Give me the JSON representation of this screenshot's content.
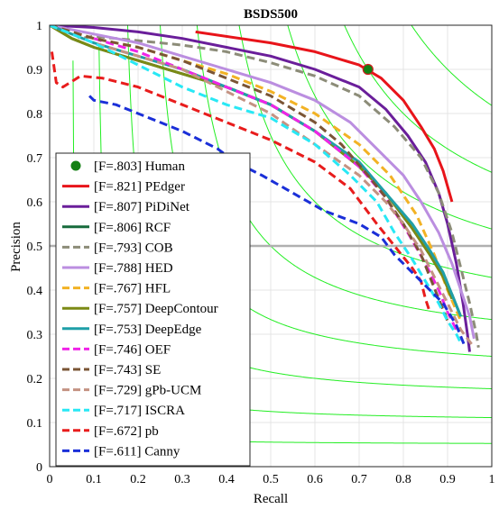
{
  "chart_data": {
    "type": "line",
    "title": "BSDS500",
    "xlabel": "Recall",
    "ylabel": "Precision",
    "xlim": [
      0,
      1
    ],
    "ylim": [
      0,
      1
    ],
    "x_ticks": [
      "0",
      "0.1",
      "0.2",
      "0.3",
      "0.4",
      "0.5",
      "0.6",
      "0.7",
      "0.8",
      "0.9",
      "1"
    ],
    "y_ticks": [
      "0",
      "0.1",
      "0.2",
      "0.3",
      "0.4",
      "0.5",
      "0.6",
      "0.7",
      "0.8",
      "0.9",
      "1"
    ],
    "grid": true,
    "legend_position": "bottom-left",
    "reference_line": {
      "y": 0.5,
      "color": "#b0b0b0"
    },
    "iso_f_curves": {
      "color": "#22ee22",
      "f_values": [
        0.1,
        0.2,
        0.3,
        0.4,
        0.5,
        0.6,
        0.7,
        0.8,
        0.9
      ]
    },
    "human_point": {
      "label": "[F=.803] Human",
      "x": 0.72,
      "y": 0.9,
      "color": "#138013"
    },
    "series": [
      {
        "name": "[F=.821] PEdger",
        "color": "#e8141a",
        "dash": "solid",
        "points": [
          [
            0.33,
            0.985
          ],
          [
            0.5,
            0.96
          ],
          [
            0.6,
            0.94
          ],
          [
            0.7,
            0.91
          ],
          [
            0.75,
            0.88
          ],
          [
            0.8,
            0.83
          ],
          [
            0.84,
            0.77
          ],
          [
            0.87,
            0.72
          ],
          [
            0.89,
            0.67
          ],
          [
            0.91,
            0.6
          ]
        ]
      },
      {
        "name": "[F=.807] PiDiNet",
        "color": "#6a1e9a",
        "dash": "solid",
        "points": [
          [
            0.0,
            1.0
          ],
          [
            0.1,
            0.995
          ],
          [
            0.2,
            0.985
          ],
          [
            0.3,
            0.97
          ],
          [
            0.4,
            0.95
          ],
          [
            0.5,
            0.93
          ],
          [
            0.6,
            0.9
          ],
          [
            0.7,
            0.86
          ],
          [
            0.76,
            0.81
          ],
          [
            0.81,
            0.75
          ],
          [
            0.85,
            0.69
          ],
          [
            0.88,
            0.62
          ],
          [
            0.9,
            0.55
          ],
          [
            0.92,
            0.46
          ],
          [
            0.935,
            0.37
          ],
          [
            0.945,
            0.3
          ],
          [
            0.95,
            0.26
          ]
        ]
      },
      {
        "name": "[F=.806] RCF",
        "color": "#176b3c",
        "dash": "solid",
        "points": [
          [
            0.0,
            1.0
          ],
          [
            0.05,
            0.97
          ],
          [
            0.1,
            0.95
          ],
          [
            0.2,
            0.92
          ],
          [
            0.3,
            0.89
          ],
          [
            0.4,
            0.86
          ],
          [
            0.5,
            0.82
          ],
          [
            0.6,
            0.76
          ],
          [
            0.7,
            0.68
          ],
          [
            0.76,
            0.62
          ],
          [
            0.82,
            0.54
          ],
          [
            0.86,
            0.48
          ],
          [
            0.89,
            0.43
          ],
          [
            0.91,
            0.39
          ],
          [
            0.93,
            0.34
          ]
        ]
      },
      {
        "name": "[F=.793] COB",
        "color": "#8c8c78",
        "dash": "dash",
        "points": [
          [
            0.0,
            1.0
          ],
          [
            0.04,
            0.99
          ],
          [
            0.07,
            0.97
          ],
          [
            0.1,
            0.975
          ],
          [
            0.2,
            0.965
          ],
          [
            0.3,
            0.955
          ],
          [
            0.4,
            0.94
          ],
          [
            0.5,
            0.915
          ],
          [
            0.6,
            0.885
          ],
          [
            0.7,
            0.84
          ],
          [
            0.78,
            0.77
          ],
          [
            0.84,
            0.7
          ],
          [
            0.88,
            0.62
          ],
          [
            0.91,
            0.53
          ],
          [
            0.93,
            0.45
          ],
          [
            0.95,
            0.37
          ],
          [
            0.965,
            0.3
          ],
          [
            0.97,
            0.27
          ]
        ]
      },
      {
        "name": "[F=.788] HED",
        "color": "#bb8ee0",
        "dash": "solid",
        "points": [
          [
            0.0,
            1.0
          ],
          [
            0.1,
            0.98
          ],
          [
            0.2,
            0.96
          ],
          [
            0.3,
            0.93
          ],
          [
            0.4,
            0.9
          ],
          [
            0.5,
            0.87
          ],
          [
            0.6,
            0.83
          ],
          [
            0.68,
            0.78
          ],
          [
            0.75,
            0.71
          ],
          [
            0.8,
            0.66
          ],
          [
            0.84,
            0.6
          ],
          [
            0.88,
            0.53
          ],
          [
            0.91,
            0.46
          ],
          [
            0.93,
            0.4
          ],
          [
            0.95,
            0.34
          ],
          [
            0.96,
            0.29
          ]
        ]
      },
      {
        "name": "[F=.767] HFL",
        "color": "#f2b224",
        "dash": "dash",
        "points": [
          [
            0.0,
            1.0
          ],
          [
            0.1,
            0.97
          ],
          [
            0.2,
            0.95
          ],
          [
            0.3,
            0.92
          ],
          [
            0.4,
            0.89
          ],
          [
            0.5,
            0.85
          ],
          [
            0.6,
            0.8
          ],
          [
            0.7,
            0.73
          ],
          [
            0.77,
            0.66
          ],
          [
            0.83,
            0.57
          ],
          [
            0.87,
            0.48
          ],
          [
            0.9,
            0.4
          ],
          [
            0.93,
            0.33
          ]
        ]
      },
      {
        "name": "[F=.757] DeepContour",
        "color": "#7b8a15",
        "dash": "solid",
        "points": [
          [
            0.0,
            1.0
          ],
          [
            0.05,
            0.97
          ],
          [
            0.1,
            0.95
          ],
          [
            0.2,
            0.92
          ],
          [
            0.3,
            0.89
          ],
          [
            0.4,
            0.86
          ],
          [
            0.5,
            0.82
          ],
          [
            0.6,
            0.76
          ],
          [
            0.7,
            0.68
          ],
          [
            0.76,
            0.62
          ],
          [
            0.82,
            0.54
          ],
          [
            0.86,
            0.48
          ],
          [
            0.89,
            0.43
          ],
          [
            0.91,
            0.38
          ]
        ]
      },
      {
        "name": "[F=.753] DeepEdge",
        "color": "#1f9fa8",
        "dash": "solid",
        "points": [
          [
            0.0,
            1.0
          ],
          [
            0.1,
            0.96
          ],
          [
            0.2,
            0.93
          ],
          [
            0.3,
            0.9
          ],
          [
            0.4,
            0.86
          ],
          [
            0.5,
            0.82
          ],
          [
            0.6,
            0.76
          ],
          [
            0.7,
            0.69
          ],
          [
            0.76,
            0.62
          ],
          [
            0.82,
            0.55
          ],
          [
            0.86,
            0.49
          ],
          [
            0.89,
            0.44
          ],
          [
            0.91,
            0.39
          ],
          [
            0.93,
            0.34
          ]
        ]
      },
      {
        "name": "[F=.746] OEF",
        "color": "#f023e8",
        "dash": "dash",
        "points": [
          [
            0.1,
            0.97
          ],
          [
            0.2,
            0.94
          ],
          [
            0.3,
            0.9
          ],
          [
            0.4,
            0.86
          ],
          [
            0.5,
            0.82
          ],
          [
            0.6,
            0.76
          ],
          [
            0.7,
            0.68
          ],
          [
            0.76,
            0.61
          ],
          [
            0.81,
            0.53
          ],
          [
            0.85,
            0.46
          ],
          [
            0.88,
            0.4
          ],
          [
            0.9,
            0.35
          ],
          [
            0.92,
            0.31
          ]
        ]
      },
      {
        "name": "[F=.743] SE",
        "color": "#7a5535",
        "dash": "dash",
        "points": [
          [
            0.0,
            1.0
          ],
          [
            0.05,
            0.985
          ],
          [
            0.1,
            0.97
          ],
          [
            0.2,
            0.95
          ],
          [
            0.3,
            0.92
          ],
          [
            0.4,
            0.88
          ],
          [
            0.5,
            0.84
          ],
          [
            0.6,
            0.78
          ],
          [
            0.66,
            0.73
          ],
          [
            0.72,
            0.66
          ],
          [
            0.76,
            0.61
          ],
          [
            0.8,
            0.55
          ],
          [
            0.84,
            0.48
          ],
          [
            0.86,
            0.43
          ],
          [
            0.88,
            0.38
          ],
          [
            0.9,
            0.33
          ]
        ]
      },
      {
        "name": "[F=.729] gPb-UCM",
        "color": "#c49282",
        "dash": "dash",
        "points": [
          [
            0.0,
            1.0
          ],
          [
            0.05,
            0.98
          ],
          [
            0.1,
            0.96
          ],
          [
            0.2,
            0.93
          ],
          [
            0.3,
            0.9
          ],
          [
            0.4,
            0.85
          ],
          [
            0.5,
            0.8
          ],
          [
            0.6,
            0.73
          ],
          [
            0.7,
            0.66
          ],
          [
            0.76,
            0.6
          ],
          [
            0.8,
            0.55
          ],
          [
            0.84,
            0.49
          ],
          [
            0.87,
            0.43
          ],
          [
            0.9,
            0.37
          ],
          [
            0.93,
            0.31
          ],
          [
            0.96,
            0.27
          ]
        ]
      },
      {
        "name": "[F=.717] ISCRA",
        "color": "#28e8f5",
        "dash": "dash",
        "points": [
          [
            0.0,
            1.0
          ],
          [
            0.1,
            0.96
          ],
          [
            0.2,
            0.91
          ],
          [
            0.3,
            0.86
          ],
          [
            0.4,
            0.82
          ],
          [
            0.5,
            0.79
          ],
          [
            0.6,
            0.73
          ],
          [
            0.68,
            0.66
          ],
          [
            0.74,
            0.6
          ],
          [
            0.78,
            0.53
          ],
          [
            0.82,
            0.47
          ],
          [
            0.85,
            0.42
          ],
          [
            0.88,
            0.37
          ],
          [
            0.9,
            0.33
          ],
          [
            0.92,
            0.3
          ],
          [
            0.93,
            0.28
          ]
        ]
      },
      {
        "name": "[F=.672] pb",
        "color": "#e81c1c",
        "dash": "dash",
        "points": [
          [
            0.005,
            0.94
          ],
          [
            0.015,
            0.87
          ],
          [
            0.03,
            0.86
          ],
          [
            0.07,
            0.885
          ],
          [
            0.12,
            0.88
          ],
          [
            0.2,
            0.86
          ],
          [
            0.3,
            0.82
          ],
          [
            0.4,
            0.78
          ],
          [
            0.5,
            0.74
          ],
          [
            0.6,
            0.69
          ],
          [
            0.68,
            0.63
          ],
          [
            0.74,
            0.55
          ],
          [
            0.78,
            0.5
          ],
          [
            0.82,
            0.45
          ],
          [
            0.84,
            0.42
          ],
          [
            0.85,
            0.38
          ],
          [
            0.86,
            0.35
          ]
        ]
      },
      {
        "name": "[F=.611] Canny",
        "color": "#1a2fd8",
        "dash": "dash",
        "points": [
          [
            0.09,
            0.84
          ],
          [
            0.1,
            0.83
          ],
          [
            0.15,
            0.82
          ],
          [
            0.2,
            0.8
          ],
          [
            0.3,
            0.76
          ],
          [
            0.38,
            0.72
          ],
          [
            0.42,
            0.69
          ],
          [
            0.48,
            0.66
          ],
          [
            0.55,
            0.62
          ],
          [
            0.62,
            0.58
          ],
          [
            0.7,
            0.55
          ],
          [
            0.75,
            0.52
          ],
          [
            0.78,
            0.48
          ],
          [
            0.82,
            0.44
          ],
          [
            0.86,
            0.4
          ],
          [
            0.89,
            0.37
          ],
          [
            0.92,
            0.32
          ],
          [
            0.94,
            0.27
          ]
        ]
      }
    ]
  }
}
